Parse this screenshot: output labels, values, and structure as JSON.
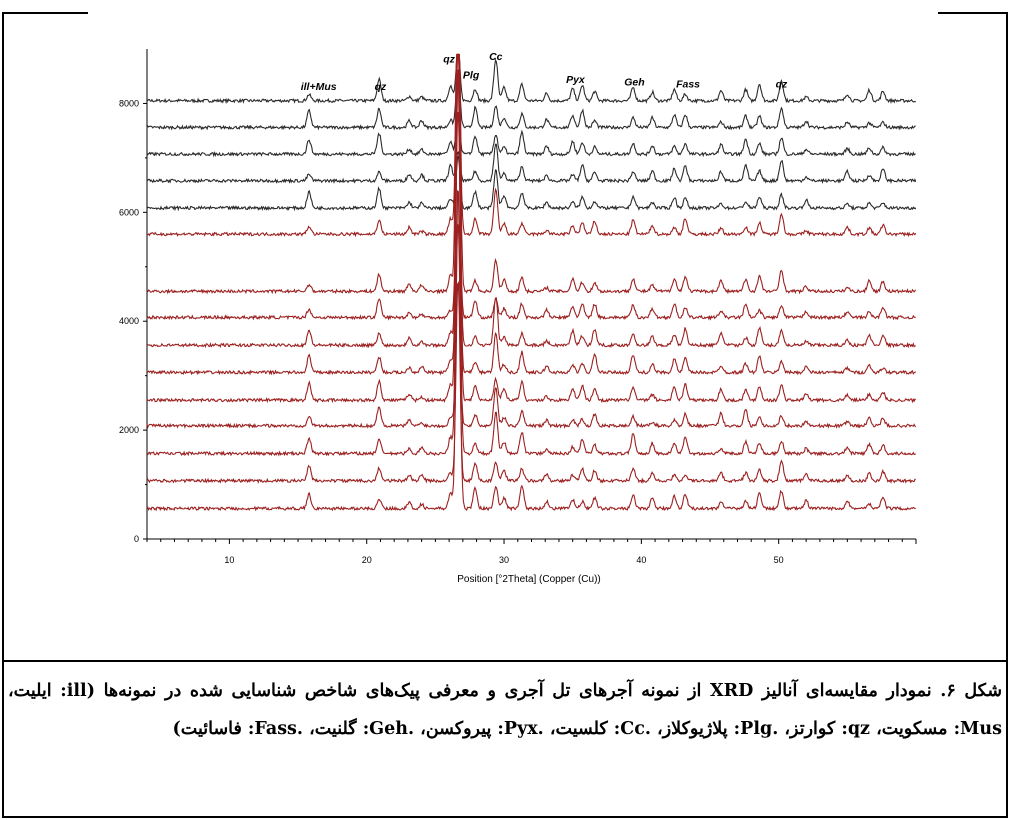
{
  "chart_data": {
    "type": "line",
    "xlabel": "Position [°2Theta] (Copper (Cu))",
    "ylabel": "",
    "xlim": [
      4,
      60
    ],
    "ylim": [
      0,
      9000
    ],
    "x_ticks": [
      10,
      20,
      30,
      40,
      50
    ],
    "y_ticks": [
      0,
      2000,
      4000,
      6000,
      8000
    ],
    "grid": false,
    "legend": "none",
    "series_colors": {
      "upper": "#2b2b2b",
      "lower": "#9c2020"
    },
    "baselines": [
      8050,
      7560,
      7070,
      6580,
      6080,
      5600,
      4550,
      4070,
      3560,
      3060,
      2550,
      2080,
      1570,
      1070,
      560
    ],
    "baseline_colors": [
      "upper",
      "upper",
      "upper",
      "upper",
      "upper",
      "lower",
      "lower",
      "lower",
      "lower",
      "lower",
      "lower",
      "lower",
      "lower",
      "lower",
      "lower"
    ],
    "peaks": [
      {
        "x": 15.8,
        "h": 250
      },
      {
        "x": 20.9,
        "h": 320
      },
      {
        "x": 23.1,
        "h": 120
      },
      {
        "x": 24.0,
        "h": 110
      },
      {
        "x": 26.1,
        "h": 260
      },
      {
        "x": 26.65,
        "h": 900
      },
      {
        "x": 27.9,
        "h": 300
      },
      {
        "x": 29.4,
        "h": 700
      },
      {
        "x": 30.0,
        "h": 220
      },
      {
        "x": 31.3,
        "h": 330
      },
      {
        "x": 33.1,
        "h": 130
      },
      {
        "x": 35.0,
        "h": 220
      },
      {
        "x": 35.7,
        "h": 250
      },
      {
        "x": 36.6,
        "h": 260
      },
      {
        "x": 39.4,
        "h": 320
      },
      {
        "x": 40.8,
        "h": 150
      },
      {
        "x": 42.4,
        "h": 200
      },
      {
        "x": 43.2,
        "h": 240
      },
      {
        "x": 45.8,
        "h": 180
      },
      {
        "x": 47.6,
        "h": 240
      },
      {
        "x": 48.6,
        "h": 250
      },
      {
        "x": 50.2,
        "h": 330
      },
      {
        "x": 52.0,
        "h": 120
      },
      {
        "x": 55.0,
        "h": 140
      },
      {
        "x": 56.6,
        "h": 160
      },
      {
        "x": 57.6,
        "h": 170
      }
    ],
    "annotations": [
      {
        "text": "ill+Mus",
        "x": 16.5,
        "y": 8250
      },
      {
        "text": "qz",
        "x": 21.0,
        "y": 8250
      },
      {
        "text": "qz",
        "x": 26.0,
        "y": 8750
      },
      {
        "text": "Plg",
        "x": 27.6,
        "y": 8460
      },
      {
        "text": "Cc",
        "x": 29.4,
        "y": 8800
      },
      {
        "text": "Pyx",
        "x": 35.2,
        "y": 8380
      },
      {
        "text": "Geh",
        "x": 39.5,
        "y": 8330
      },
      {
        "text": "Fass",
        "x": 43.4,
        "y": 8290
      },
      {
        "text": "qz",
        "x": 50.2,
        "y": 8290
      }
    ]
  },
  "caption": {
    "p1": "شکل ۶. نمودار مقایسه‌ای آنالیز ",
    "xrd": "XRD",
    "p2": " از نمونه آجرهای تل آجری و معرفی پیک‌های شاخص شناسایی شده در نمونه‌ها (",
    "ill": "ill",
    "p3": ": ایلیت، ",
    "mus": "Mus",
    "p4": ": مسکویت، ",
    "qz": "qz",
    "p5": ": کوارتز، ",
    "plg": ".Plg",
    "p6": ": پلاژیوکلاز، ",
    "cc": ".Cc",
    "p7": ": کلسیت، ",
    "pyx": ".Pyx",
    "p8": ": پیروکسن، ",
    "geh": ".Geh",
    "p9": ": گلنیت، ",
    "fass": ".Fass",
    "p10": ": فاسائیت)"
  }
}
